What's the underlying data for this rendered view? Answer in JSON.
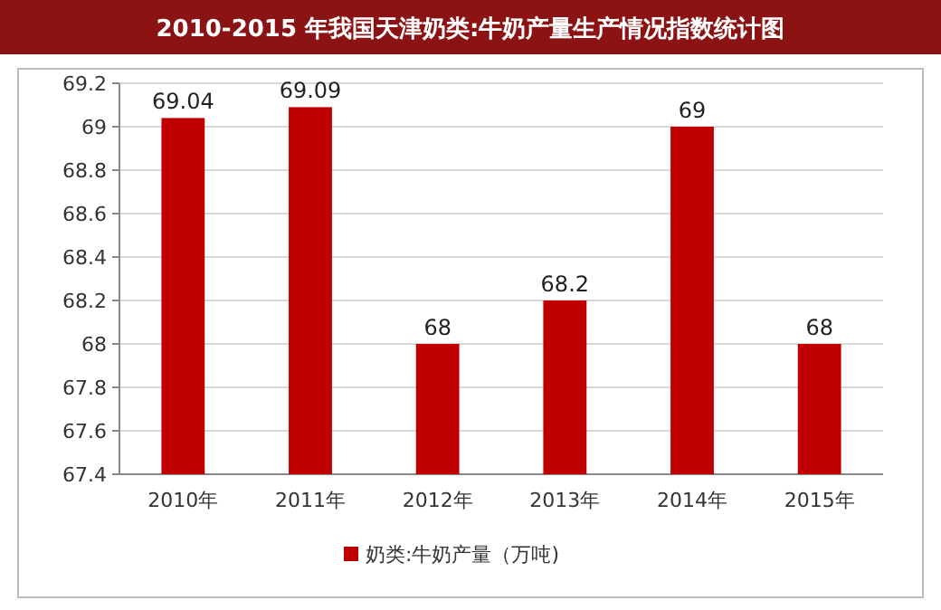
{
  "chart_data": {
    "type": "bar",
    "title": "2010-2015 年我国天津奶类:牛奶产量生产情况指数统计图",
    "categories": [
      "2010年",
      "2011年",
      "2012年",
      "2013年",
      "2014年",
      "2015年"
    ],
    "series": [
      {
        "name": "奶类:牛奶产量（万吨)",
        "color": "#c00000",
        "values": [
          69.04,
          69.09,
          68,
          68.2,
          69,
          68
        ]
      }
    ],
    "ylim": [
      67.4,
      69.2
    ],
    "yticks": [
      67.4,
      67.6,
      67.8,
      68,
      68.2,
      68.4,
      68.6,
      68.8,
      69,
      69.2
    ],
    "grid": "y",
    "legend": "bottom",
    "data_labels": true
  }
}
